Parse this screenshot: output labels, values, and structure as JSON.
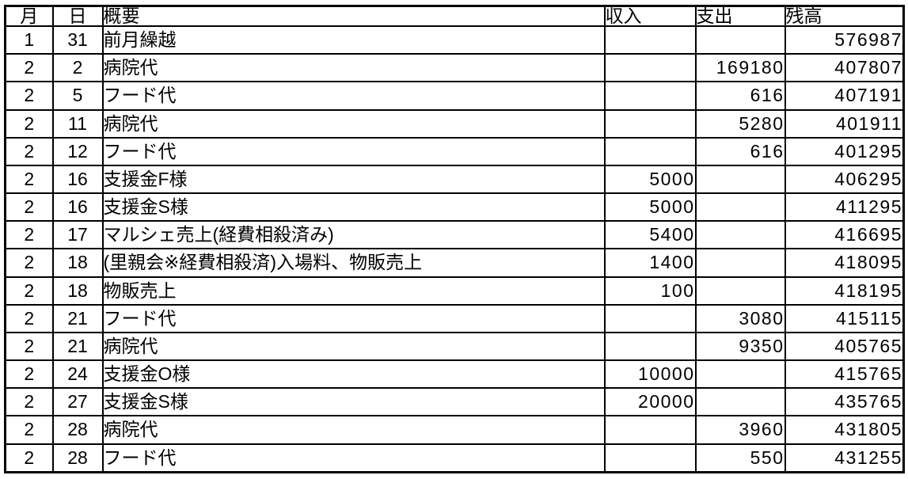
{
  "table": {
    "headers": {
      "month": "月",
      "day": "日",
      "description": "概要",
      "income": "収入",
      "expense": "支出",
      "balance": "残高"
    },
    "rows": [
      {
        "month": "1",
        "day": "31",
        "description": "前月繰越",
        "income": "",
        "expense": "",
        "balance": "576987"
      },
      {
        "month": "2",
        "day": "2",
        "description": "病院代",
        "income": "",
        "expense": "169180",
        "balance": "407807"
      },
      {
        "month": "2",
        "day": "5",
        "description": "フード代",
        "income": "",
        "expense": "616",
        "balance": "407191"
      },
      {
        "month": "2",
        "day": "11",
        "description": "病院代",
        "income": "",
        "expense": "5280",
        "balance": "401911"
      },
      {
        "month": "2",
        "day": "12",
        "description": "フード代",
        "income": "",
        "expense": "616",
        "balance": "401295"
      },
      {
        "month": "2",
        "day": "16",
        "description": "支援金F様",
        "income": "5000",
        "expense": "",
        "balance": "406295"
      },
      {
        "month": "2",
        "day": "16",
        "description": "支援金S様",
        "income": "5000",
        "expense": "",
        "balance": "411295"
      },
      {
        "month": "2",
        "day": "17",
        "description": "マルシェ売上(経費相殺済み)",
        "income": "5400",
        "expense": "",
        "balance": "416695"
      },
      {
        "month": "2",
        "day": "18",
        "description": "(里親会※経費相殺済)入場料、物販売上",
        "income": "1400",
        "expense": "",
        "balance": "418095"
      },
      {
        "month": "2",
        "day": "18",
        "description": "物販売上",
        "income": "100",
        "expense": "",
        "balance": "418195"
      },
      {
        "month": "2",
        "day": "21",
        "description": "フード代",
        "income": "",
        "expense": "3080",
        "balance": "415115"
      },
      {
        "month": "2",
        "day": "21",
        "description": "病院代",
        "income": "",
        "expense": "9350",
        "balance": "405765"
      },
      {
        "month": "2",
        "day": "24",
        "description": "支援金O様",
        "income": "10000",
        "expense": "",
        "balance": "415765"
      },
      {
        "month": "2",
        "day": "27",
        "description": "支援金S様",
        "income": "20000",
        "expense": "",
        "balance": "435765"
      },
      {
        "month": "2",
        "day": "28",
        "description": "病院代",
        "income": "",
        "expense": "3960",
        "balance": "431805"
      },
      {
        "month": "2",
        "day": "28",
        "description": "フード代",
        "income": "",
        "expense": "550",
        "balance": "431255"
      }
    ]
  }
}
